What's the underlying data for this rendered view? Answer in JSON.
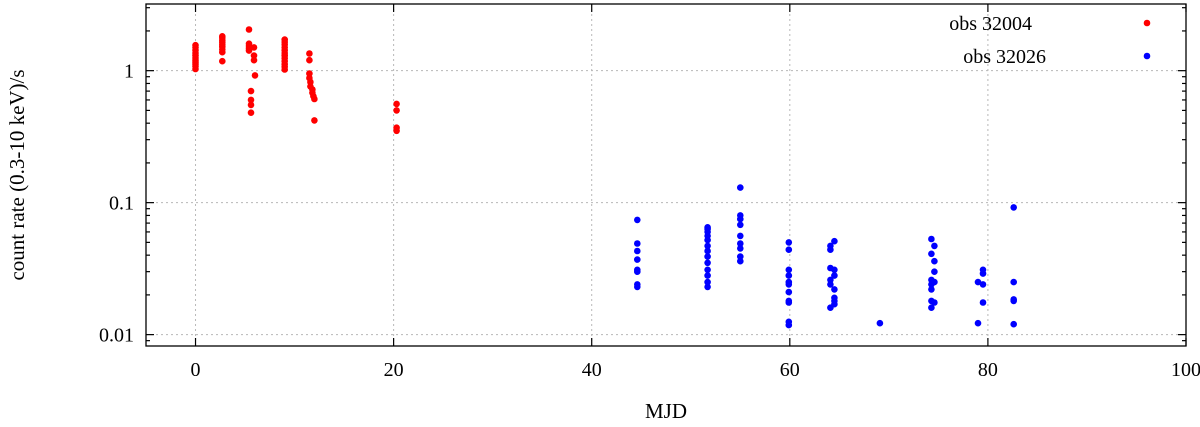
{
  "chart_data": {
    "type": "scatter",
    "xlabel": "MJD",
    "ylabel": "count rate (0.3-10 keV)/s",
    "xlim": [
      -5,
      100
    ],
    "ylim": [
      0.0082,
      3.2
    ],
    "yscale": "log",
    "x_ticks": [
      0,
      20,
      40,
      60,
      80,
      100
    ],
    "y_ticks": [
      0.01,
      0.1,
      1
    ],
    "y_tick_labels": [
      "0.01",
      "0.1",
      "1"
    ],
    "grid": true,
    "legend_position": "top-right",
    "series": [
      {
        "name": "obs 32004",
        "color": "#ff0000",
        "points": [
          [
            0.0,
            1.03
          ],
          [
            0.0,
            1.08
          ],
          [
            0.0,
            1.12
          ],
          [
            0.0,
            1.16
          ],
          [
            0.0,
            1.2
          ],
          [
            0.0,
            1.25
          ],
          [
            0.0,
            1.3
          ],
          [
            0.0,
            1.36
          ],
          [
            0.0,
            1.43
          ],
          [
            0.0,
            1.5
          ],
          [
            0.0,
            1.56
          ],
          [
            2.7,
            1.18
          ],
          [
            2.7,
            1.38
          ],
          [
            2.7,
            1.45
          ],
          [
            2.7,
            1.52
          ],
          [
            2.7,
            1.58
          ],
          [
            2.7,
            1.64
          ],
          [
            2.7,
            1.7
          ],
          [
            2.7,
            1.77
          ],
          [
            2.7,
            1.82
          ],
          [
            5.4,
            2.05
          ],
          [
            5.4,
            1.6
          ],
          [
            5.4,
            1.54
          ],
          [
            5.4,
            1.48
          ],
          [
            5.4,
            1.42
          ],
          [
            5.6,
            0.48
          ],
          [
            5.6,
            0.55
          ],
          [
            5.6,
            0.6
          ],
          [
            5.6,
            0.7
          ],
          [
            5.9,
            1.5
          ],
          [
            5.9,
            1.3
          ],
          [
            5.9,
            1.2
          ],
          [
            6.0,
            0.92
          ],
          [
            9.0,
            1.72
          ],
          [
            9.0,
            1.65
          ],
          [
            9.0,
            1.58
          ],
          [
            9.0,
            1.5
          ],
          [
            9.0,
            1.43
          ],
          [
            9.0,
            1.36
          ],
          [
            9.0,
            1.3
          ],
          [
            9.0,
            1.24
          ],
          [
            9.0,
            1.18
          ],
          [
            9.0,
            1.12
          ],
          [
            9.0,
            1.07
          ],
          [
            9.0,
            1.02
          ],
          [
            11.5,
            1.35
          ],
          [
            11.5,
            1.2
          ],
          [
            11.5,
            0.95
          ],
          [
            11.5,
            0.88
          ],
          [
            11.6,
            0.82
          ],
          [
            11.6,
            0.76
          ],
          [
            11.8,
            0.72
          ],
          [
            11.8,
            0.68
          ],
          [
            11.9,
            0.64
          ],
          [
            12.0,
            0.61
          ],
          [
            12.0,
            0.42
          ],
          [
            20.3,
            0.56
          ],
          [
            20.3,
            0.5
          ],
          [
            20.3,
            0.37
          ],
          [
            20.3,
            0.35
          ]
        ]
      },
      {
        "name": "obs 32026",
        "color": "#0000ff",
        "points": [
          [
            44.6,
            0.074
          ],
          [
            44.6,
            0.049
          ],
          [
            44.6,
            0.043
          ],
          [
            44.6,
            0.037
          ],
          [
            44.6,
            0.031
          ],
          [
            44.6,
            0.03
          ],
          [
            44.6,
            0.024
          ],
          [
            44.6,
            0.023
          ],
          [
            51.7,
            0.065
          ],
          [
            51.7,
            0.063
          ],
          [
            51.7,
            0.06
          ],
          [
            51.7,
            0.056
          ],
          [
            51.7,
            0.052
          ],
          [
            51.7,
            0.047
          ],
          [
            51.7,
            0.043
          ],
          [
            51.7,
            0.039
          ],
          [
            51.7,
            0.035
          ],
          [
            51.7,
            0.031
          ],
          [
            51.7,
            0.028
          ],
          [
            51.7,
            0.025
          ],
          [
            51.7,
            0.023
          ],
          [
            55.0,
            0.13
          ],
          [
            55.0,
            0.08
          ],
          [
            55.0,
            0.075
          ],
          [
            55.0,
            0.068
          ],
          [
            55.0,
            0.056
          ],
          [
            55.0,
            0.049
          ],
          [
            55.0,
            0.045
          ],
          [
            55.0,
            0.039
          ],
          [
            55.0,
            0.036
          ],
          [
            59.9,
            0.05
          ],
          [
            59.9,
            0.044
          ],
          [
            59.9,
            0.031
          ],
          [
            59.9,
            0.028
          ],
          [
            59.9,
            0.025
          ],
          [
            59.9,
            0.024
          ],
          [
            59.9,
            0.021
          ],
          [
            59.9,
            0.018
          ],
          [
            59.9,
            0.0175
          ],
          [
            59.9,
            0.0125
          ],
          [
            59.9,
            0.0118
          ],
          [
            64.1,
            0.047
          ],
          [
            64.1,
            0.044
          ],
          [
            64.1,
            0.032
          ],
          [
            64.1,
            0.026
          ],
          [
            64.1,
            0.024
          ],
          [
            64.1,
            0.016
          ],
          [
            64.5,
            0.051
          ],
          [
            64.5,
            0.031
          ],
          [
            64.5,
            0.028
          ],
          [
            64.5,
            0.022
          ],
          [
            64.5,
            0.019
          ],
          [
            64.5,
            0.018
          ],
          [
            64.5,
            0.017
          ],
          [
            69.1,
            0.0122
          ],
          [
            74.3,
            0.053
          ],
          [
            74.3,
            0.041
          ],
          [
            74.3,
            0.026
          ],
          [
            74.3,
            0.024
          ],
          [
            74.3,
            0.022
          ],
          [
            74.3,
            0.018
          ],
          [
            74.3,
            0.016
          ],
          [
            74.6,
            0.047
          ],
          [
            74.6,
            0.036
          ],
          [
            74.6,
            0.03
          ],
          [
            74.6,
            0.025
          ],
          [
            74.6,
            0.0175
          ],
          [
            79.0,
            0.0122
          ],
          [
            79.0,
            0.025
          ],
          [
            79.5,
            0.031
          ],
          [
            79.5,
            0.029
          ],
          [
            79.5,
            0.024
          ],
          [
            79.5,
            0.0175
          ],
          [
            82.6,
            0.092
          ],
          [
            82.6,
            0.025
          ],
          [
            82.6,
            0.0185
          ],
          [
            82.6,
            0.018
          ],
          [
            82.6,
            0.012
          ]
        ]
      }
    ]
  }
}
